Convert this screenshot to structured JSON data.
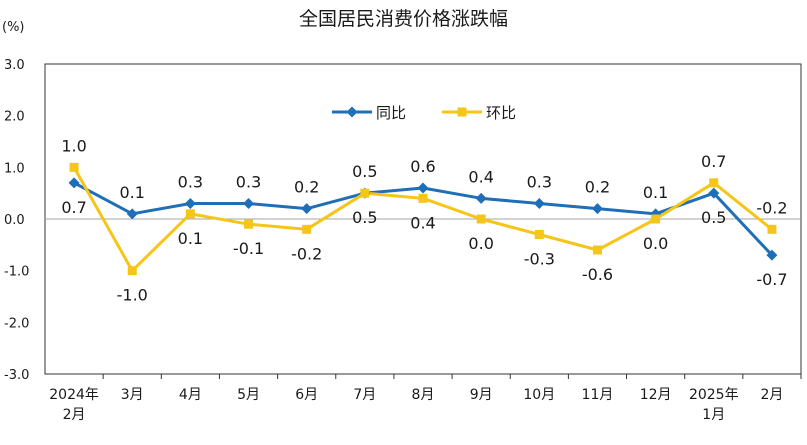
{
  "chart_data": {
    "type": "line",
    "title": "全国居民消费价格涨跌幅",
    "unit": "(%)",
    "ylim": [
      -3.0,
      3.0
    ],
    "yticks": [
      "3.0",
      "2.0",
      "1.0",
      "0.0",
      "-1.0",
      "-2.0",
      "-3.0"
    ],
    "ytick_values": [
      3,
      2,
      1,
      0,
      -1,
      -2,
      -3
    ],
    "categories": [
      [
        "2024年",
        "2月"
      ],
      [
        "3月"
      ],
      [
        "4月"
      ],
      [
        "5月"
      ],
      [
        "6月"
      ],
      [
        "7月"
      ],
      [
        "8月"
      ],
      [
        "9月"
      ],
      [
        "10月"
      ],
      [
        "11月"
      ],
      [
        "12月"
      ],
      [
        "2025年",
        "1月"
      ],
      [
        "2月"
      ]
    ],
    "series": [
      {
        "name": "同比",
        "color": "#1f6fb8",
        "marker": "diamond",
        "values": [
          0.7,
          0.1,
          0.3,
          0.3,
          0.2,
          0.5,
          0.6,
          0.4,
          0.3,
          0.2,
          0.1,
          0.5,
          -0.7
        ],
        "labels": [
          "0.7",
          "0.1",
          "0.3",
          "0.3",
          "0.2",
          "0.5",
          "0.6",
          "0.4",
          "0.3",
          "0.2",
          "0.1",
          "0.5",
          "-0.7"
        ]
      },
      {
        "name": "环比",
        "color": "#f5c518",
        "marker": "square",
        "values": [
          1.0,
          -1.0,
          0.1,
          -0.1,
          -0.2,
          0.5,
          0.4,
          0.0,
          -0.3,
          -0.6,
          0.0,
          0.7,
          -0.2
        ],
        "labels": [
          "1.0",
          "-1.0",
          "0.1",
          "-0.1",
          "-0.2",
          "0.5",
          "0.4",
          "0.0",
          "-0.3",
          "-0.6",
          "0.0",
          "0.7",
          "-0.2"
        ]
      }
    ],
    "legend_position": "top-right",
    "grid": false
  }
}
